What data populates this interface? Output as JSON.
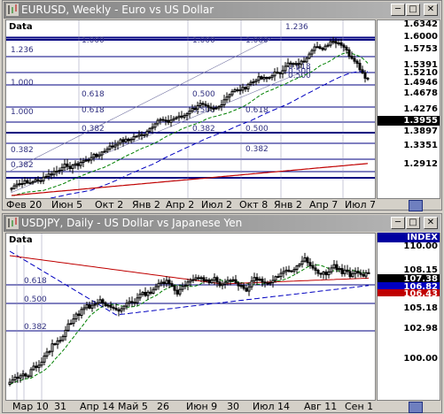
{
  "window1": {
    "title": "EURUSD, Weekly - Euro vs US Dollar",
    "data_tag": "Data",
    "y_labels": [
      "1.6342",
      "1.6000",
      "1.5753",
      "1.5391",
      "1.5210",
      "1.4946",
      "1.4678",
      "1.4276",
      "1.3897",
      "1.3351",
      "1.2912"
    ],
    "current_price": "1.3955",
    "x_labels": [
      "Фев 20",
      "Июн 5",
      "Окт 2",
      "Янв 2",
      "Апр 2",
      "Июл 2",
      "Окт 8",
      "Янв 2",
      "Апр 7",
      "Июл 7"
    ],
    "fib_labels": [
      "1.000",
      "1.000",
      "1.000",
      "1.236",
      "1.236",
      "1.000",
      "0.618",
      "0.618",
      "0.500",
      "0.500",
      "0.382",
      "0.382",
      "0.618",
      "0.500",
      "1.000",
      "0.500",
      "0.382",
      "0.382",
      "0.618",
      "0.500",
      "0.382"
    ],
    "colors": {
      "up": "#000000",
      "down": "#000000",
      "ma_fast": "#008000",
      "ma_mid": "#0000c0",
      "ma_slow": "#c00000",
      "fib": "#000080",
      "current_box": "#000000"
    }
  },
  "window2": {
    "title": "USDJPY, Daily - US Dollar vs Japanese Yen",
    "data_tag": "Data",
    "index_label": "INDEX",
    "y_labels": [
      "110.00",
      "105.18",
      "102.98",
      "100.00"
    ],
    "price_boxes": [
      {
        "text": "108.15",
        "bg": "#ffffff",
        "fg": "#000000"
      },
      {
        "text": "107.38",
        "bg": "#000000",
        "fg": "#ffffff"
      },
      {
        "text": "106.82",
        "bg": "#0000c0",
        "fg": "#ffffff"
      },
      {
        "text": "106.43",
        "bg": "#c00000",
        "fg": "#ffffff"
      }
    ],
    "x_labels": [
      "Мар 10",
      "31",
      "Апр 14",
      "Май 5",
      "26",
      "Июн 9",
      "30",
      "Июл 14",
      "Авг 11",
      "Сен 1"
    ],
    "fib_labels": [
      "0.618",
      "0.500",
      "0.382"
    ],
    "colors": {
      "ma_fast": "#008000",
      "ma_mid": "#0000c0",
      "ma_slow": "#c00000",
      "fib": "#000080"
    }
  },
  "icons": {
    "app": "chart-app-icon",
    "minimize": "minimize-icon",
    "maximize": "maximize-icon",
    "close": "close-icon"
  }
}
